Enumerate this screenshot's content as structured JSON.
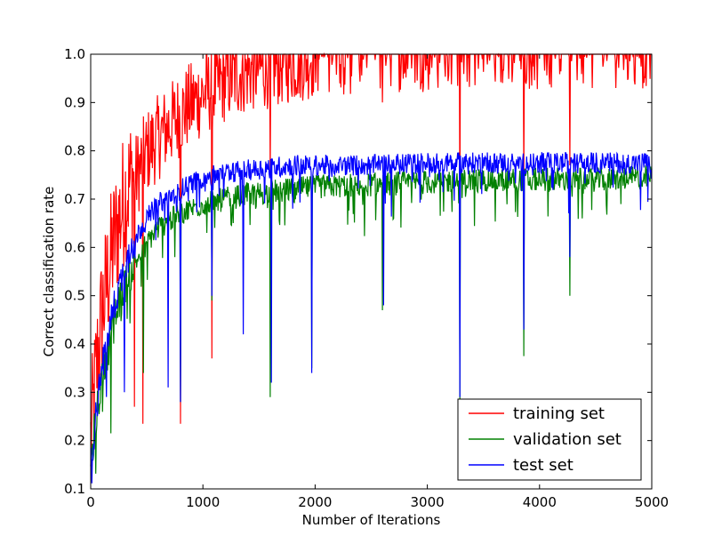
{
  "chart_data": {
    "type": "line",
    "title": "",
    "xlabel": "Number of Iterations",
    "ylabel": "Correct classification rate",
    "xlim": [
      0,
      5000
    ],
    "ylim": [
      0.1,
      1.0
    ],
    "xticks": [
      0,
      1000,
      2000,
      3000,
      4000,
      5000
    ],
    "xtick_labels": [
      "0",
      "1000",
      "2000",
      "3000",
      "4000",
      "5000"
    ],
    "yticks": [
      0.1,
      0.2,
      0.3,
      0.4,
      0.5,
      0.6,
      0.7,
      0.8,
      0.9,
      1.0
    ],
    "ytick_labels": [
      "0.1",
      "0.2",
      "0.3",
      "0.4",
      "0.5",
      "0.6",
      "0.7",
      "0.8",
      "0.9",
      "1.0"
    ],
    "grid": false,
    "legend_position": "lower-right",
    "series": [
      {
        "name": "training set",
        "color": "#ff0000",
        "x": [
          0,
          50,
          100,
          200,
          300,
          400,
          500,
          600,
          800,
          1000,
          1200,
          1400,
          1600,
          1800,
          2000,
          2500,
          3000,
          3500,
          4000,
          4500,
          5000
        ],
        "y": [
          0.15,
          0.3,
          0.42,
          0.56,
          0.66,
          0.72,
          0.77,
          0.8,
          0.85,
          0.89,
          0.92,
          0.94,
          0.95,
          0.96,
          0.97,
          0.98,
          0.985,
          0.99,
          0.99,
          0.99,
          0.99
        ],
        "dips": [
          [
            390,
            0.27
          ],
          [
            465,
            0.235
          ],
          [
            800,
            0.235
          ],
          [
            1080,
            0.37
          ],
          [
            1600,
            0.75
          ],
          [
            2600,
            0.9
          ],
          [
            3290,
            0.7
          ],
          [
            3860,
            0.75
          ],
          [
            4270,
            0.77
          ]
        ]
      },
      {
        "name": "validation set",
        "color": "#008000",
        "x": [
          0,
          50,
          100,
          200,
          300,
          400,
          500,
          600,
          800,
          1000,
          1200,
          1400,
          1600,
          1800,
          2000,
          2500,
          3000,
          3500,
          4000,
          4500,
          5000
        ],
        "y": [
          0.15,
          0.25,
          0.33,
          0.44,
          0.52,
          0.57,
          0.61,
          0.64,
          0.67,
          0.69,
          0.7,
          0.71,
          0.715,
          0.72,
          0.725,
          0.73,
          0.735,
          0.74,
          0.74,
          0.74,
          0.745
        ],
        "dips": [
          [
            180,
            0.215
          ],
          [
            470,
            0.34
          ],
          [
            800,
            0.28
          ],
          [
            1080,
            0.49
          ],
          [
            1600,
            0.29
          ],
          [
            1970,
            0.35
          ],
          [
            2600,
            0.47
          ],
          [
            3290,
            0.28
          ],
          [
            3860,
            0.375
          ],
          [
            4270,
            0.5
          ]
        ]
      },
      {
        "name": "test set",
        "color": "#0000ff",
        "x": [
          0,
          50,
          100,
          200,
          300,
          400,
          500,
          600,
          800,
          1000,
          1200,
          1400,
          1600,
          1800,
          2000,
          2500,
          3000,
          3500,
          4000,
          4500,
          5000
        ],
        "y": [
          0.15,
          0.26,
          0.35,
          0.47,
          0.56,
          0.62,
          0.66,
          0.69,
          0.72,
          0.745,
          0.755,
          0.76,
          0.765,
          0.77,
          0.77,
          0.77,
          0.775,
          0.775,
          0.775,
          0.775,
          0.775
        ],
        "dips": [
          [
            300,
            0.3
          ],
          [
            690,
            0.31
          ],
          [
            800,
            0.28
          ],
          [
            1080,
            0.5
          ],
          [
            1360,
            0.42
          ],
          [
            1610,
            0.32
          ],
          [
            1970,
            0.34
          ],
          [
            2610,
            0.48
          ],
          [
            3290,
            0.29
          ],
          [
            3860,
            0.43
          ],
          [
            4270,
            0.58
          ]
        ]
      }
    ]
  }
}
